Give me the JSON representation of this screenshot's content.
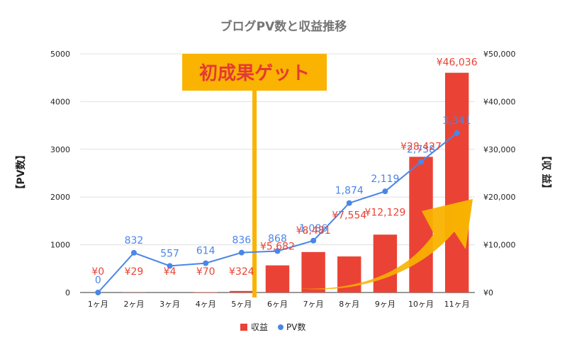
{
  "chart_data": {
    "type": "bar",
    "title": "ブログPV数と収益推移",
    "categories": [
      "1ヶ月",
      "2ヶ月",
      "3ヶ月",
      "4ヶ月",
      "5ヶ月",
      "6ヶ月",
      "7ヶ月",
      "8ヶ月",
      "9ヶ月",
      "10ヶ月",
      "11ヶ月"
    ],
    "series": [
      {
        "name": "収益",
        "type": "bar",
        "axis": "right",
        "values": [
          0,
          29,
          4,
          70,
          324,
          5682,
          8481,
          7554,
          12129,
          28427,
          46036
        ],
        "labels": [
          "¥0",
          "¥29",
          "¥4",
          "¥70",
          "¥324",
          "¥5,682",
          "¥8,481",
          "¥7,554",
          "¥12,129",
          "¥28,427",
          "¥46,036"
        ]
      },
      {
        "name": "PV数",
        "type": "line",
        "axis": "left",
        "values": [
          0,
          832,
          557,
          614,
          836,
          868,
          1086,
          1874,
          2119,
          2738,
          3341
        ],
        "labels": [
          "0",
          "832",
          "557",
          "614",
          "836",
          "868",
          "1,086",
          "1,874",
          "2,119",
          "2,738",
          "3,341"
        ]
      }
    ],
    "ylabel": "【PV数】",
    "y2label": "【収 益】",
    "ylim": [
      0,
      5000
    ],
    "y2lim": [
      0,
      50000
    ],
    "yticks": [
      "0",
      "1000",
      "2000",
      "3000",
      "4000",
      "5000"
    ],
    "y2ticks": [
      "¥0",
      "¥10,000",
      "¥20,000",
      "¥30,000",
      "¥40,000",
      "¥50,000"
    ],
    "grid": true,
    "legend": "bottom",
    "annotation": {
      "text": "初成果ゲット",
      "at_category": "5ヶ月"
    },
    "colors": {
      "bar": "#ea4335",
      "line": "#4a86e8",
      "highlight": "#f9b300",
      "grid": "#e0e0e0"
    }
  }
}
